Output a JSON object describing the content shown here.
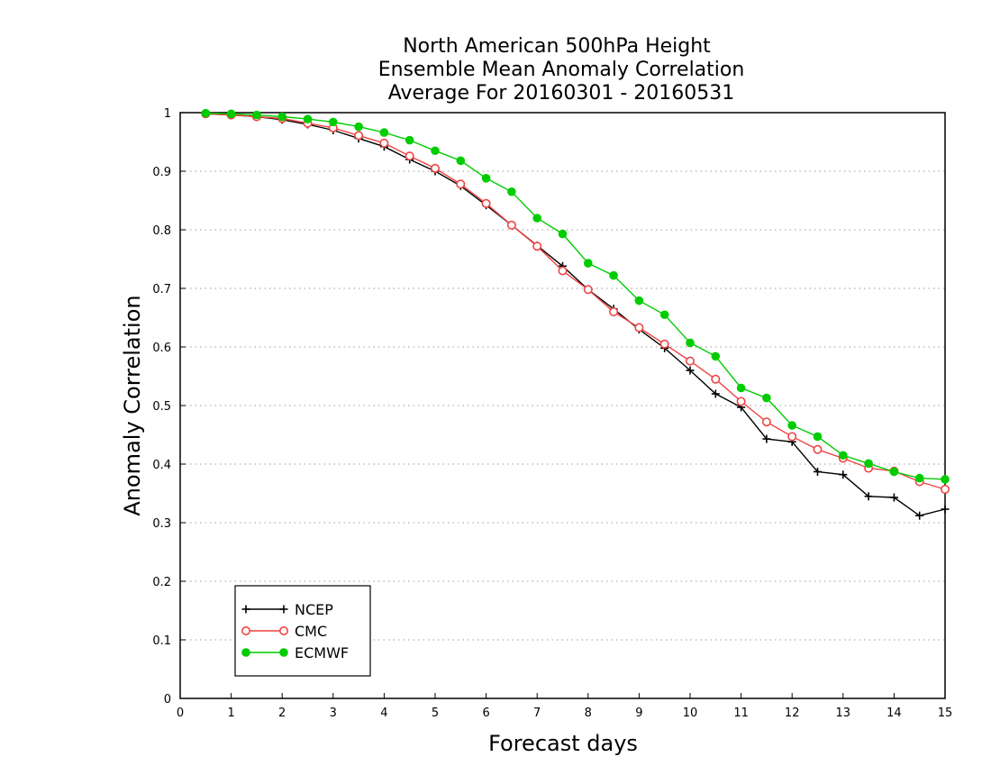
{
  "chart_data": {
    "type": "line",
    "title_lines": [
      "North American 500hPa Height",
      "Ensemble Mean Anomaly Correlation",
      "Average For 20160301 - 20160531"
    ],
    "xlabel": "Forecast days",
    "ylabel": "Anomaly Correlation",
    "xlim": [
      0,
      15
    ],
    "ylim": [
      0,
      1
    ],
    "x_ticks": [
      0,
      1,
      2,
      3,
      4,
      5,
      6,
      7,
      8,
      9,
      10,
      11,
      12,
      13,
      14,
      15
    ],
    "x_tick_labels": [
      "0",
      "1",
      "2",
      "3",
      "4",
      "5",
      "6",
      "7",
      "8",
      "9",
      "10",
      "11",
      "12",
      "13",
      "14",
      "15"
    ],
    "y_ticks": [
      0,
      0.1,
      0.2,
      0.3,
      0.4,
      0.5,
      0.6,
      0.7,
      0.8,
      0.9,
      1
    ],
    "y_tick_labels": [
      "0",
      "0.1",
      "0.2",
      "0.3",
      "0.4",
      "0.5",
      "0.6",
      "0.7",
      "0.8",
      "0.9",
      "1"
    ],
    "grid": "horizontal dotted",
    "legend_position": "bottom-left",
    "x": [
      0.5,
      1,
      1.5,
      2,
      2.5,
      3,
      3.5,
      4,
      4.5,
      5,
      5.5,
      6,
      6.5,
      7,
      7.5,
      8,
      8.5,
      9,
      9.5,
      10,
      10.5,
      11,
      11.5,
      12,
      12.5,
      13,
      13.5,
      14,
      14.5,
      15
    ],
    "series": [
      {
        "name": "NCEP",
        "color": "#000000",
        "marker": "plus",
        "values": [
          0.998,
          0.996,
          0.993,
          0.988,
          0.98,
          0.97,
          0.956,
          0.942,
          0.92,
          0.9,
          0.875,
          0.842,
          0.808,
          0.773,
          0.738,
          0.698,
          0.665,
          0.63,
          0.598,
          0.56,
          0.52,
          0.497,
          0.443,
          0.438,
          0.387,
          0.382,
          0.345,
          0.343,
          0.312,
          0.323
        ]
      },
      {
        "name": "CMC",
        "color": "#ee4444",
        "marker": "open-circle",
        "values": [
          0.998,
          0.996,
          0.993,
          0.99,
          0.982,
          0.974,
          0.961,
          0.948,
          0.926,
          0.905,
          0.878,
          0.845,
          0.808,
          0.772,
          0.73,
          0.698,
          0.66,
          0.633,
          0.605,
          0.576,
          0.545,
          0.507,
          0.472,
          0.447,
          0.425,
          0.41,
          0.393,
          0.388,
          0.37,
          0.357
        ]
      },
      {
        "name": "ECMWF",
        "color": "#00cc00",
        "marker": "filled-circle",
        "values": [
          0.999,
          0.998,
          0.996,
          0.993,
          0.989,
          0.984,
          0.976,
          0.966,
          0.953,
          0.935,
          0.918,
          0.888,
          0.865,
          0.82,
          0.793,
          0.743,
          0.722,
          0.679,
          0.655,
          0.607,
          0.584,
          0.53,
          0.513,
          0.466,
          0.447,
          0.415,
          0.401,
          0.387,
          0.376,
          0.374
        ]
      }
    ]
  }
}
